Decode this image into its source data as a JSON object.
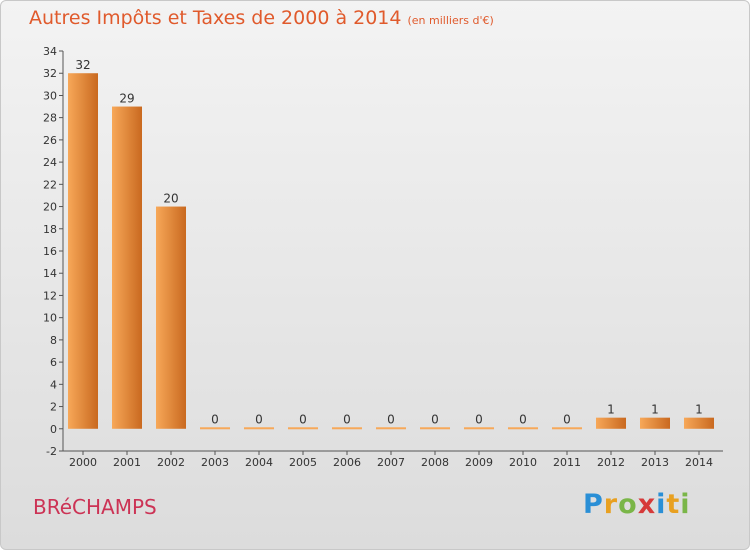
{
  "header": {
    "title": "Autres Impôts et Taxes de 2000 à 2014",
    "unit_note": "(en milliers d'€)"
  },
  "footer": {
    "commune": "BRéCHAMPS",
    "brand_letters": [
      "P",
      "r",
      "o",
      "x",
      "i",
      "t",
      "i"
    ],
    "brand_colors": [
      "#2a8fd6",
      "#e8a020",
      "#7ab648",
      "#d63a3a",
      "#2a8fd6",
      "#e8a020",
      "#7ab648"
    ]
  },
  "colors": {
    "bar_light": "#f7a859",
    "bar_dark": "#c9691f",
    "title": "#e05a2c",
    "commune": "#cc3355"
  },
  "chart_data": {
    "type": "bar",
    "categories": [
      "2000",
      "2001",
      "2002",
      "2003",
      "2004",
      "2005",
      "2006",
      "2007",
      "2008",
      "2009",
      "2010",
      "2011",
      "2012",
      "2013",
      "2014"
    ],
    "values": [
      32,
      29,
      20,
      0,
      0,
      0,
      0,
      0,
      0,
      0,
      0,
      0,
      1,
      1,
      1
    ],
    "data_labels": [
      "32",
      "29",
      "20",
      "0",
      "0",
      "0",
      "0",
      "0",
      "0",
      "0",
      "0",
      "0",
      "1",
      "1",
      "1"
    ],
    "yticks": [
      "-2",
      "0",
      "2",
      "4",
      "6",
      "8",
      "10",
      "12",
      "14",
      "16",
      "18",
      "20",
      "22",
      "24",
      "26",
      "28",
      "30",
      "32",
      "34"
    ],
    "ylim": [
      -2,
      34
    ],
    "title": "Autres Impôts et Taxes de 2000 à 2014",
    "xlabel": "",
    "ylabel": "",
    "grid": false
  }
}
